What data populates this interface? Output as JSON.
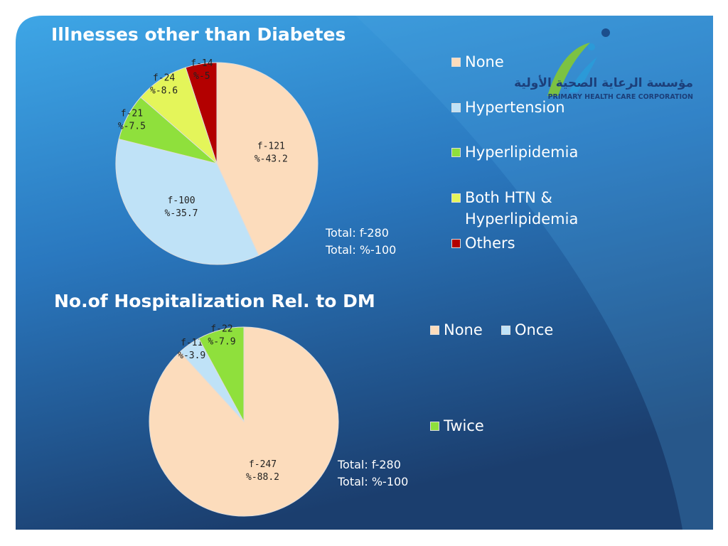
{
  "logo": {
    "arabic": "مؤسسة الرعاية الصحية الأولية",
    "english": "PRIMARY HEALTH CARE CORPORATION"
  },
  "chart_data": [
    {
      "type": "pie",
      "title": "Illnesses other than Diabetes",
      "categories": [
        "None",
        "Hypertension",
        "Hyperlipidemia",
        "Both HTN & Hyperlipidemia",
        "Others"
      ],
      "values": [
        43.2,
        35.7,
        7.5,
        8.6,
        5
      ],
      "value_labels": [
        "%-43.2",
        "%-35.7",
        "%-7.5",
        "%-8.6",
        "%-5"
      ],
      "frequency_labels": [
        "f-121",
        "f-100",
        "f-21",
        "f-24",
        "f-14"
      ],
      "colors": [
        "#fcdcbc",
        "#bfe2f7",
        "#8fe03c",
        "#e4f55a",
        "#b30000"
      ],
      "totals": [
        "Total: f-280",
        "Total: %-100"
      ]
    },
    {
      "type": "pie",
      "title": "No.of Hospitalization Rel. to DM",
      "categories": [
        "None",
        "Once",
        "Twice"
      ],
      "values": [
        88.2,
        3.9,
        7.9
      ],
      "value_labels": [
        "%-88.2",
        "%-3.9",
        "%-7.9"
      ],
      "frequency_labels": [
        "f-247",
        "f-11",
        "f-22"
      ],
      "colors": [
        "#fcdcbc",
        "#bfe2f7",
        "#8fe03c"
      ],
      "totals": [
        "Total: f-280",
        "Total: %-100"
      ]
    }
  ]
}
